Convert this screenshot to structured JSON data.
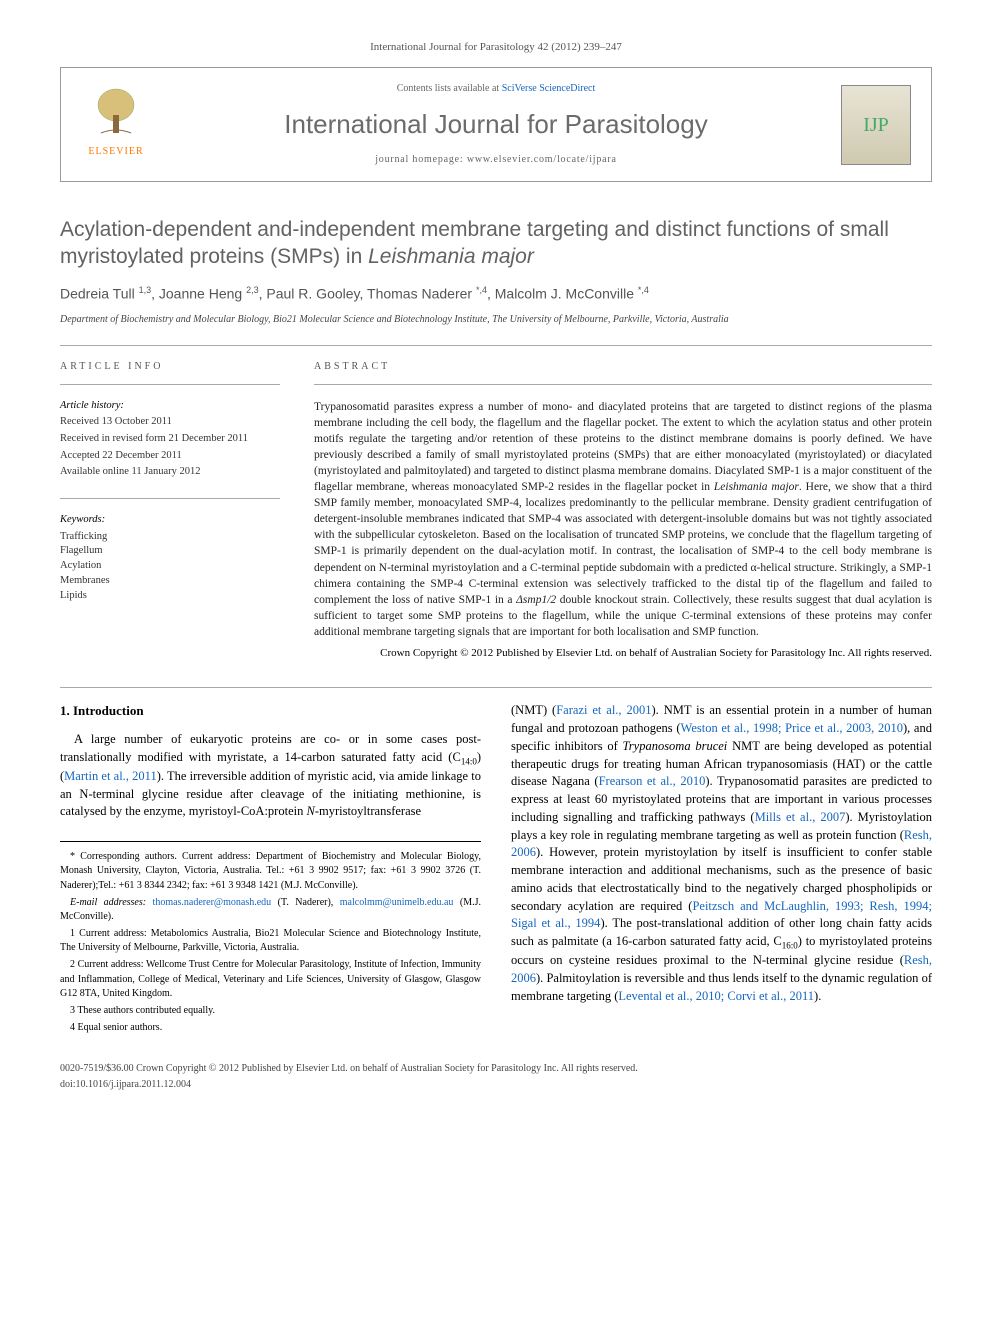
{
  "journal_ref": "International Journal for Parasitology 42 (2012) 239–247",
  "header": {
    "contents_prefix": "Contents lists available at ",
    "contents_link": "SciVerse ScienceDirect",
    "journal_name": "International Journal for Parasitology",
    "homepage_prefix": "journal homepage: ",
    "homepage_url": "www.elsevier.com/locate/ijpara",
    "elsevier_label": "ELSEVIER",
    "logo_text": "IJP"
  },
  "title_a": "Acylation-dependent and-independent membrane targeting and distinct functions of small myristoylated proteins (SMPs) in ",
  "title_b": "Leishmania major",
  "authors_html": "Dedreia Tull {sup}1,3{/sup}, Joanne Heng {sup}2,3{/sup}, Paul R. Gooley, Thomas Naderer {sup}*,4{/sup}, Malcolm J. McConville {sup}*,4{/sup}",
  "affiliation": "Department of Biochemistry and Molecular Biology, Bio21 Molecular Science and Biotechnology Institute, The University of Melbourne, Parkville, Victoria, Australia",
  "article_info": {
    "heading": "article info",
    "history_label": "Article history:",
    "received": "Received 13 October 2011",
    "revised": "Received in revised form 21 December 2011",
    "accepted": "Accepted 22 December 2011",
    "online": "Available online 11 January 2012",
    "keywords_label": "Keywords:",
    "keywords": [
      "Trafficking",
      "Flagellum",
      "Acylation",
      "Membranes",
      "Lipids"
    ]
  },
  "abstract": {
    "heading": "abstract",
    "text": "Trypanosomatid parasites express a number of mono- and diacylated proteins that are targeted to distinct regions of the plasma membrane including the cell body, the flagellum and the flagellar pocket. The extent to which the acylation status and other protein motifs regulate the targeting and/or retention of these proteins to the distinct membrane domains is poorly defined. We have previously described a family of small myristoylated proteins (SMPs) that are either monoacylated (myristoylated) or diacylated (myristoylated and palmitoylated) and targeted to distinct plasma membrane domains. Diacylated SMP-1 is a major constituent of the flagellar membrane, whereas monoacylated SMP-2 resides in the flagellar pocket in Leishmania major. Here, we show that a third SMP family member, monoacylated SMP-4, localizes predominantly to the pellicular membrane. Density gradient centrifugation of detergent-insoluble membranes indicated that SMP-4 was associated with detergent-insoluble domains but was not tightly associated with the subpellicular cytoskeleton. Based on the localisation of truncated SMP proteins, we conclude that the flagellum targeting of SMP-1 is primarily dependent on the dual-acylation motif. In contrast, the localisation of SMP-4 to the cell body membrane is dependent on N-terminal myristoylation and a C-terminal peptide subdomain with a predicted α-helical structure. Strikingly, a SMP-1 chimera containing the SMP-4 C-terminal extension was selectively trafficked to the distal tip of the flagellum and failed to complement the loss of native SMP-1 in a Δsmp1/2 double knockout strain. Collectively, these results suggest that dual acylation is sufficient to target some SMP proteins to the flagellum, while the unique C-terminal extensions of these proteins may confer additional membrane targeting signals that are important for both localisation and SMP function.",
    "copyright": "Crown Copyright © 2012 Published by Elsevier Ltd. on behalf of Australian Society for Parasitology Inc. All rights reserved."
  },
  "intro": {
    "heading": "1. Introduction",
    "col1": "A large number of eukaryotic proteins are co- or in some cases post-translationally modified with myristate, a 14-carbon saturated fatty acid (C14:0) (Martin et al., 2011). The irreversible addition of myristic acid, via amide linkage to an N-terminal glycine residue after cleavage of the initiating methionine, is catalysed by the enzyme, myristoyl-CoA:protein N-myristoyltransferase",
    "col2": "(NMT) (Farazi et al., 2001). NMT is an essential protein in a number of human fungal and protozoan pathogens (Weston et al., 1998; Price et al., 2003, 2010), and specific inhibitors of Trypanosoma brucei NMT are being developed as potential therapeutic drugs for treating human African trypanosomiasis (HAT) or the cattle disease Nagana (Frearson et al., 2010). Trypanosomatid parasites are predicted to express at least 60 myristoylated proteins that are important in various processes including signalling and trafficking pathways (Mills et al., 2007). Myristoylation plays a key role in regulating membrane targeting as well as protein function (Resh, 2006). However, protein myristoylation by itself is insufficient to confer stable membrane interaction and additional mechanisms, such as the presence of basic amino acids that electrostatically bind to the negatively charged phospholipids or secondary acylation are required (Peitzsch and McLaughlin, 1993; Resh, 1994; Sigal et al., 1994). The post-translational addition of other long chain fatty acids such as palmitate (a 16-carbon saturated fatty acid, C16:0) to myristoylated proteins occurs on cysteine residues proximal to the N-terminal glycine residue (Resh, 2006). Palmitoylation is reversible and thus lends itself to the dynamic regulation of membrane targeting (Levental et al., 2010; Corvi et al., 2011)."
  },
  "footnotes": {
    "corr": "* Corresponding authors. Current address: Department of Biochemistry and Molecular Biology, Monash University, Clayton, Victoria, Australia. Tel.: +61 3 9902 9517; fax: +61 3 9902 3726 (T. Naderer);Tel.: +61 3 8344 2342; fax: +61 3 9348 1421 (M.J. McConville).",
    "email_label": "E-mail addresses: ",
    "email1": "thomas.naderer@monash.edu",
    "email1_who": " (T. Naderer), ",
    "email2": "malcolmm@unimelb.edu.au",
    "email2_who": " (M.J. McConville).",
    "n1": "1 Current address: Metabolomics Australia, Bio21 Molecular Science and Biotechnology Institute, The University of Melbourne, Parkville, Victoria, Australia.",
    "n2": "2 Current address: Wellcome Trust Centre for Molecular Parasitology, Institute of Infection, Immunity and Inflammation, College of Medical, Veterinary and Life Sciences, University of Glasgow, Glasgow G12 8TA, United Kingdom.",
    "n3": "3 These authors contributed equally.",
    "n4": "4 Equal senior authors."
  },
  "footer": {
    "line1": "0020-7519/$36.00 Crown Copyright © 2012 Published by Elsevier Ltd. on behalf of Australian Society for Parasitology Inc. All rights reserved.",
    "doi": "doi:10.1016/j.ijpara.2011.12.004"
  },
  "colors": {
    "link": "#1566c0",
    "title_gray": "#626262",
    "elsevier_orange": "#ff7700"
  }
}
